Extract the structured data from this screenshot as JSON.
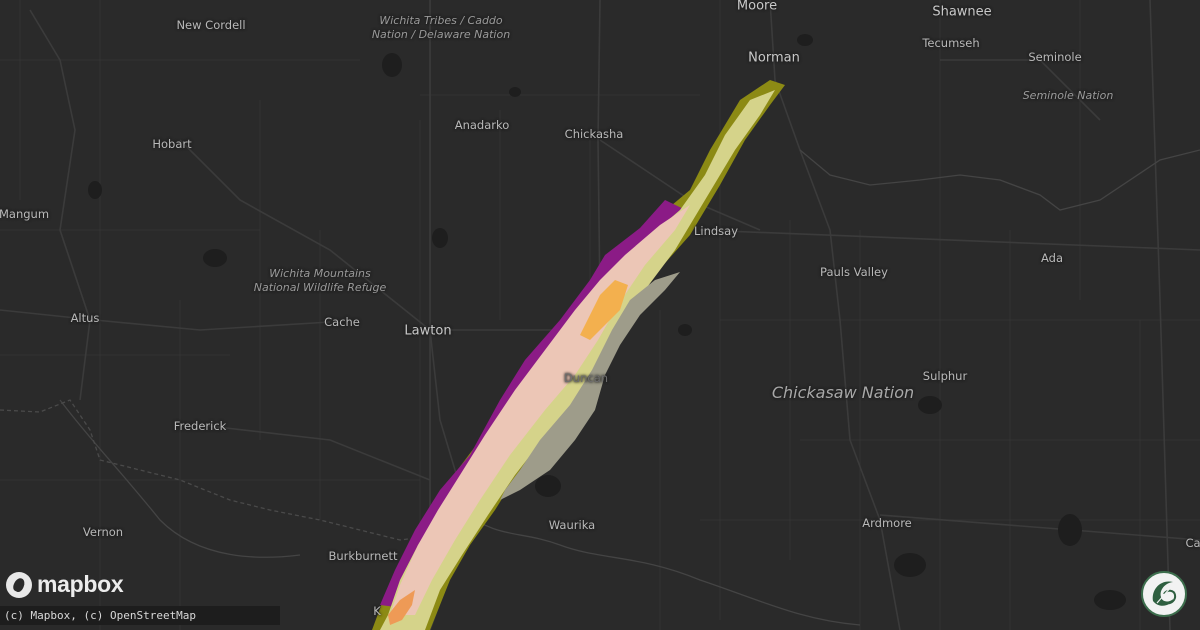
{
  "map": {
    "colors": {
      "land": "#2a2a2a",
      "roads": "#3a3a3a",
      "rivers": "#3e3e3e",
      "lakes": "#1c1c1c",
      "band_outer_yellow": "#8a8a12",
      "band_purple": "#8a1a8a",
      "band_yellow": "#d8d888",
      "band_pink": "#eec6b8",
      "band_orange": "#f2a85a",
      "band_grey": "#9c9c8a"
    },
    "places": [
      {
        "name": "Moore",
        "type": "city"
      },
      {
        "name": "Norman",
        "type": "city"
      },
      {
        "name": "Shawnee",
        "type": "city"
      },
      {
        "name": "New Cordell",
        "type": "town"
      },
      {
        "name": "Tecumseh",
        "type": "town"
      },
      {
        "name": "Seminole",
        "type": "town"
      },
      {
        "name": "Hobart",
        "type": "town"
      },
      {
        "name": "Anadarko",
        "type": "town"
      },
      {
        "name": "Chickasha",
        "type": "town"
      },
      {
        "name": "Mangum",
        "type": "town"
      },
      {
        "name": "Lindsay",
        "type": "town"
      },
      {
        "name": "Pauls Valley",
        "type": "town"
      },
      {
        "name": "Ada",
        "type": "town"
      },
      {
        "name": "Altus",
        "type": "town"
      },
      {
        "name": "Cache",
        "type": "town"
      },
      {
        "name": "Lawton",
        "type": "city"
      },
      {
        "name": "Duncan",
        "type": "town"
      },
      {
        "name": "Sulphur",
        "type": "town"
      },
      {
        "name": "Frederick",
        "type": "town"
      },
      {
        "name": "Waurika",
        "type": "town"
      },
      {
        "name": "Ardmore",
        "type": "town"
      },
      {
        "name": "Vernon",
        "type": "town"
      },
      {
        "name": "Burkburnett",
        "type": "town"
      },
      {
        "name": "Ca",
        "type": "town"
      },
      {
        "name": "K",
        "type": "town"
      }
    ],
    "areas": [
      {
        "name": "Wichita Tribes / Caddo\nNation / Delaware Nation"
      },
      {
        "name": "Seminole Nation"
      },
      {
        "name": "Wichita Mountains\nNational Wildlife Refuge"
      },
      {
        "name": "Chickasaw Nation"
      }
    ]
  },
  "branding": {
    "logo_text": "mapbox",
    "logo_icon": "mapbox-logo-icon",
    "attribution": "(c) Mapbox, (c) OpenStreetMap",
    "badge_icon": "hail-tracker-badge-icon"
  }
}
